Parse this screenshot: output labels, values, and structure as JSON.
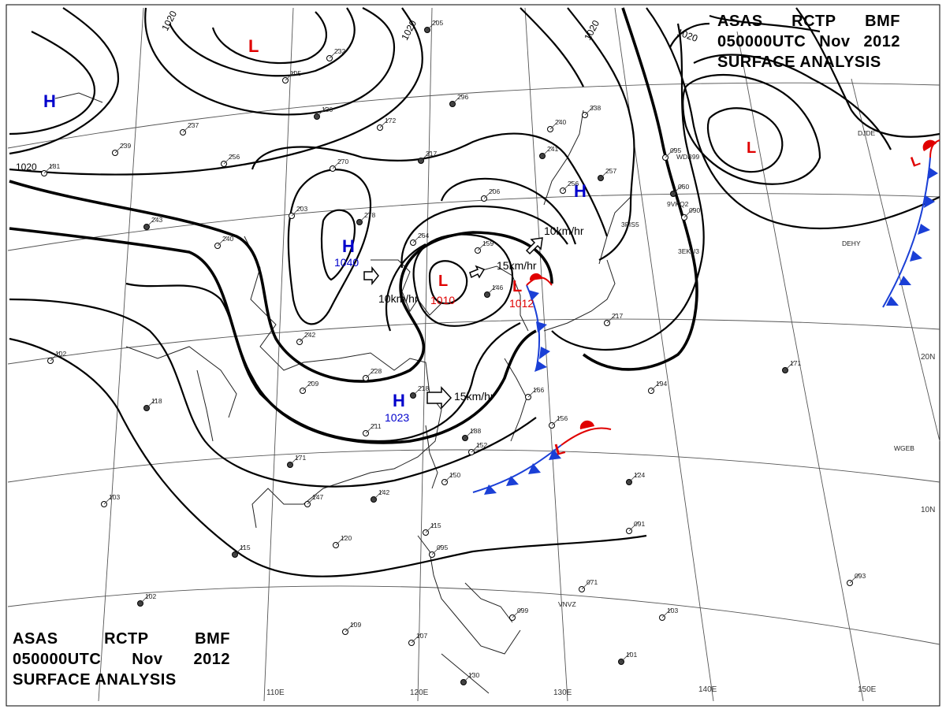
{
  "header": {
    "line1": [
      "ASAS",
      "RCTP",
      "BMF"
    ],
    "line2": [
      "050000UTC",
      "Nov",
      "2012"
    ],
    "line3": "SURFACE ANALYSIS"
  },
  "isobar_labels": [
    "1020",
    "1020",
    "1020",
    "1020",
    "1020"
  ],
  "pressure_centers": [
    {
      "type": "L",
      "value": "",
      "color": "#e00000"
    },
    {
      "type": "H",
      "value": "",
      "color": "#0000cc"
    },
    {
      "type": "H",
      "value": "1040",
      "color": "#0000cc"
    },
    {
      "type": "L",
      "value": "1010",
      "color": "#e00000"
    },
    {
      "type": "L",
      "value": "1012",
      "color": "#e00000"
    },
    {
      "type": "H",
      "value": "",
      "color": "#0000cc"
    },
    {
      "type": "L",
      "value": "",
      "color": "#e00000"
    },
    {
      "type": "L",
      "value": "",
      "color": "#e00000"
    },
    {
      "type": "H",
      "value": "1023",
      "color": "#0000cc"
    },
    {
      "type": "L",
      "value": "",
      "color": "#e00000"
    }
  ],
  "motion_vectors": [
    "10km/hr",
    "15km/hr",
    "10km/hr",
    "15km/hr"
  ],
  "longitude_labels": [
    "110E",
    "120E",
    "130E",
    "140E",
    "150E"
  ],
  "latitude_labels": [
    "20N",
    "10N"
  ],
  "station_plots": [
    "205",
    "232",
    "105",
    "130",
    "237",
    "172",
    "296",
    "256",
    "270",
    "317",
    "206",
    "240",
    "241",
    "256",
    "338",
    "257",
    "239",
    "181",
    "243",
    "240",
    "203",
    "278",
    "264",
    "159",
    "146",
    "242",
    "102",
    "118",
    "228",
    "209",
    "218",
    "211",
    "166",
    "188",
    "152",
    "156",
    "171",
    "150",
    "147",
    "142",
    "103",
    "120",
    "115",
    "115",
    "095",
    "102",
    "109",
    "107",
    "130",
    "099",
    "071",
    "124",
    "091",
    "103",
    "101",
    "093",
    "095",
    "060",
    "090",
    "194",
    "171",
    "217"
  ],
  "ship_callsigns": [
    "WDB99",
    "DJDE",
    "9VKQ2",
    "DEHY",
    "3EKU3",
    "3FIS5",
    "WGEB",
    "VNVZ"
  ],
  "colors": {
    "high": "#0000cc",
    "low": "#e00000",
    "cold_front": "#1a3fd6",
    "warm_front": "#e00000"
  }
}
